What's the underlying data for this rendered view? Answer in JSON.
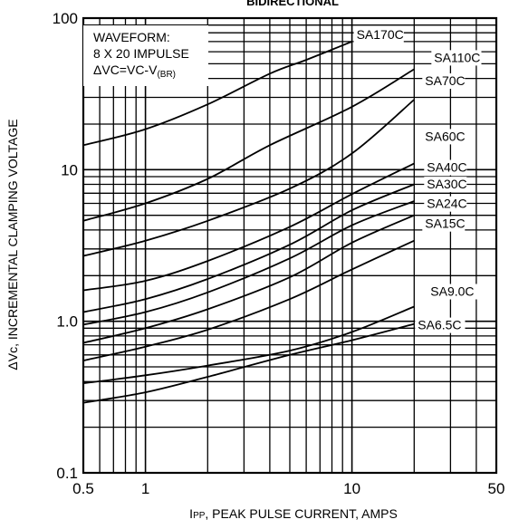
{
  "chart_data": {
    "type": "line",
    "title": "BIDIRECTIONAL",
    "xlabel": "I PP, PEAK PULSE CURRENT, AMPS",
    "xlabel_sub": "PP",
    "xlabel_main": "I",
    "xlabel_rest": ", PEAK PULSE CURRENT, AMPS",
    "ylabel": "ΔVc, INCREMENTAL CLAMPING VOLTAGE",
    "x_scale": "log",
    "y_scale": "log",
    "xlim": [
      0.5,
      50
    ],
    "ylim": [
      0.1,
      100
    ],
    "x_ticks": [
      0.5,
      1,
      10,
      50
    ],
    "x_tick_labels": [
      "0.5",
      "1",
      "10",
      "50"
    ],
    "y_ticks": [
      0.1,
      1.0,
      10,
      100
    ],
    "y_tick_labels": [
      "0.1",
      "1.0",
      "10",
      "100"
    ],
    "grid": true,
    "annotation": {
      "line1": "WAVEFORM:",
      "line2": "8 X 20 IMPULSE",
      "line3_main": "ΔVC=VC-V",
      "line3_sub": "(BR)"
    },
    "series": [
      {
        "name": "SA170C",
        "x": [
          0.5,
          1,
          2,
          4,
          6,
          10
        ],
        "y": [
          14.5,
          18.5,
          27,
          43,
          53,
          70
        ]
      },
      {
        "name": "SA110C",
        "x": [
          0.5,
          1,
          2,
          4,
          10,
          20
        ],
        "y": [
          4.6,
          6,
          8.7,
          14.5,
          26,
          46
        ]
      },
      {
        "name": "SA70C",
        "x": [
          0.5,
          1,
          2,
          5,
          10,
          20
        ],
        "y": [
          2.7,
          3.4,
          4.6,
          7.5,
          12.8,
          29
        ]
      },
      {
        "name": "SA60C",
        "x": [
          0.5,
          1,
          2,
          5,
          10,
          20
        ],
        "y": [
          1.6,
          1.85,
          2.5,
          4.2,
          6.9,
          11
        ]
      },
      {
        "name": "SA40C",
        "x": [
          0.5,
          1,
          2,
          5,
          10,
          20
        ],
        "y": [
          1.15,
          1.4,
          1.9,
          3.2,
          5.4,
          8
        ]
      },
      {
        "name": "SA30C",
        "x": [
          0.5,
          1,
          2,
          5,
          10,
          20
        ],
        "y": [
          0.95,
          1.15,
          1.55,
          2.6,
          4.3,
          6.2
        ]
      },
      {
        "name": "SA24C",
        "x": [
          0.5,
          1,
          2,
          5,
          10,
          20
        ],
        "y": [
          0.72,
          0.9,
          1.2,
          1.95,
          3.3,
          5
        ]
      },
      {
        "name": "SA15C",
        "x": [
          0.5,
          1,
          2,
          5,
          10,
          20
        ],
        "y": [
          0.55,
          0.68,
          0.88,
          1.4,
          2.2,
          3.4
        ]
      },
      {
        "name": "SA9.0C",
        "x": [
          0.5,
          1,
          2,
          5,
          10,
          20
        ],
        "y": [
          0.39,
          0.44,
          0.51,
          0.64,
          0.85,
          1.25
        ]
      },
      {
        "name": "SA6.5C",
        "x": [
          0.5,
          1,
          2,
          5,
          10,
          20
        ],
        "y": [
          0.29,
          0.34,
          0.43,
          0.6,
          0.75,
          0.96
        ]
      }
    ]
  }
}
